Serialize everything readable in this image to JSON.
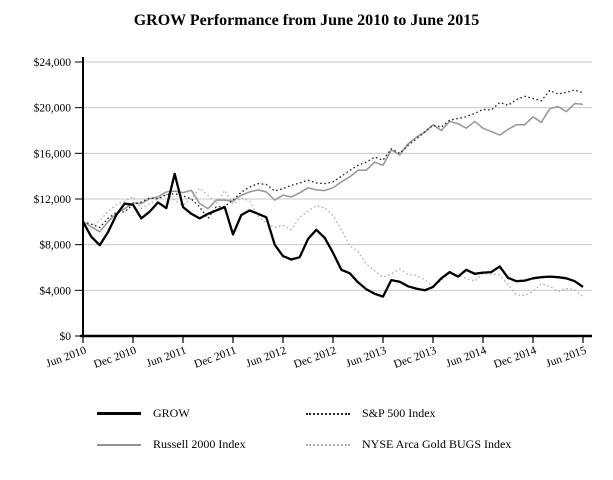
{
  "title": "GROW Performance from June 2010 to June 2015",
  "chart_data": {
    "type": "line",
    "title": "GROW Performance from June 2010 to June 2015",
    "xlabel": "",
    "ylabel": "",
    "ylim": [
      0,
      24000
    ],
    "y_tick_step": 4000,
    "y_tick_labels": [
      "$0",
      "$4,000",
      "$8,000",
      "$12,000",
      "$16,000",
      "$20,000",
      "$24,000"
    ],
    "x_tick_labels": [
      "Jun 2010",
      "Dec 2010",
      "Jun 2011",
      "Dec 2011",
      "Jun 2012",
      "Dec 2012",
      "Jun 2013",
      "Dec 2013",
      "Jun 2014",
      "Dec 2014",
      "Jun 2015"
    ],
    "x_months_total": 60,
    "grid": "horizontal-light",
    "legend_position": "bottom",
    "series": [
      {
        "name": "GROW",
        "style": "solid",
        "color": "#000000",
        "width": 2.3,
        "values": [
          10000,
          8700,
          7950,
          9100,
          10600,
          11600,
          11500,
          10300,
          10900,
          11700,
          11200,
          14200,
          11300,
          10700,
          10300,
          10700,
          11000,
          11300,
          8900,
          10600,
          11000,
          10700,
          10400,
          8000,
          7000,
          6700,
          6900,
          8500,
          9300,
          8600,
          7300,
          5800,
          5500,
          4700,
          4100,
          3700,
          3450,
          4900,
          4750,
          4350,
          4150,
          4000,
          4300,
          5050,
          5600,
          5200,
          5800,
          5450,
          5550,
          5600,
          6100,
          5100,
          4800,
          4850,
          5050,
          5150,
          5200,
          5150,
          5050,
          4800,
          4300
        ]
      },
      {
        "name": "S&P 500 Index",
        "style": "dotted",
        "color": "#1f1f1f",
        "width": 1.3,
        "values": [
          10000,
          9800,
          9500,
          10300,
          10820,
          10880,
          11520,
          11750,
          12100,
          12030,
          12380,
          12470,
          12270,
          12000,
          11300,
          10300,
          11330,
          11330,
          11900,
          12600,
          13050,
          13350,
          13280,
          12700,
          12900,
          13200,
          13400,
          13650,
          13400,
          13350,
          13500,
          14000,
          14500,
          14950,
          15230,
          15670,
          15400,
          16400,
          16000,
          16700,
          17250,
          17900,
          18450,
          18300,
          18900,
          19050,
          19200,
          19500,
          19850,
          19800,
          20450,
          20200,
          20700,
          21000,
          20800,
          20600,
          21500,
          21200,
          21350,
          21550,
          21300
        ]
      },
      {
        "name": "Russell 2000 Index",
        "style": "solid",
        "color": "#969696",
        "width": 1.5,
        "values": [
          10000,
          9570,
          9130,
          10000,
          10740,
          11160,
          11660,
          11600,
          12030,
          12180,
          12620,
          12690,
          12560,
          12760,
          11600,
          11160,
          11900,
          11900,
          11810,
          12330,
          12620,
          12800,
          12620,
          11900,
          12330,
          12180,
          12540,
          12980,
          12800,
          12740,
          12980,
          13500,
          13940,
          14520,
          14520,
          15230,
          14950,
          16300,
          15850,
          16830,
          17400,
          17830,
          18500,
          18000,
          18800,
          18600,
          18200,
          18800,
          18200,
          17900,
          17600,
          18100,
          18500,
          18500,
          19200,
          18700,
          19900,
          20100,
          19650,
          20360,
          20300
        ]
      },
      {
        "name": "NYSE Arca Gold BUGS Index",
        "style": "dotted",
        "color": "#aeaeae",
        "width": 1.3,
        "values": [
          10000,
          9600,
          10100,
          10900,
          11500,
          11800,
          12200,
          11150,
          11600,
          12000,
          12450,
          11900,
          11450,
          12050,
          12950,
          12300,
          11600,
          12750,
          11550,
          12100,
          11800,
          10500,
          9900,
          9500,
          9700,
          9300,
          10400,
          10950,
          11400,
          11250,
          10550,
          9300,
          7900,
          7400,
          6300,
          5700,
          5150,
          5450,
          5850,
          5400,
          5300,
          4950,
          4300,
          4900,
          5500,
          5300,
          5050,
          4800,
          5450,
          5450,
          5350,
          4500,
          3600,
          3550,
          3900,
          4600,
          4350,
          3900,
          4150,
          4050,
          3450
        ]
      }
    ]
  },
  "legend": {
    "grow_label": "GROW",
    "sp500_label": "S&P 500 Index",
    "russell_label": "Russell 2000 Index",
    "gold_label": "NYSE Arca Gold BUGS Index"
  }
}
